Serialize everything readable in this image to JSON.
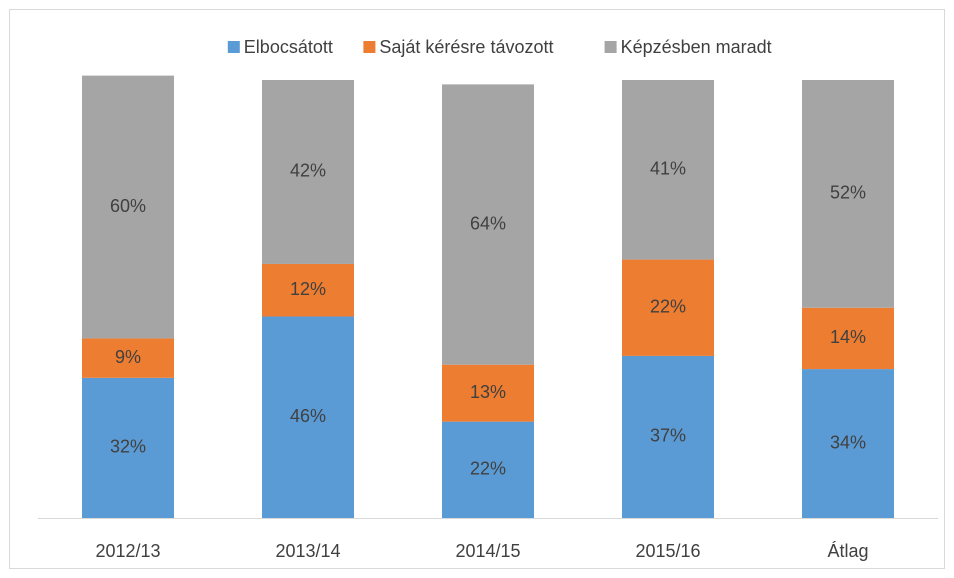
{
  "chart_data": {
    "type": "stacked_bar",
    "categories": [
      "2012/13",
      "2013/14",
      "2014/15",
      "2015/16",
      "Átlag"
    ],
    "series": [
      {
        "name": "Elbocsátott",
        "color": "#5b9bd5",
        "values": [
          32,
          46,
          22,
          37,
          34
        ],
        "value_labels": [
          "32%",
          "46%",
          "22%",
          "37%",
          "34%"
        ]
      },
      {
        "name": "Saját kérésre távozott",
        "color": "#ed7d31",
        "values": [
          9,
          12,
          13,
          22,
          14
        ],
        "value_labels": [
          "9%",
          "12%",
          "13%",
          "22%",
          "14%"
        ]
      },
      {
        "name": "Képzésben maradt",
        "color": "#a5a5a5",
        "values": [
          60,
          42,
          64,
          41,
          52
        ],
        "value_labels": [
          "60%",
          "42%",
          "64%",
          "41%",
          "52%"
        ]
      }
    ],
    "ylim": [
      0,
      100
    ]
  }
}
